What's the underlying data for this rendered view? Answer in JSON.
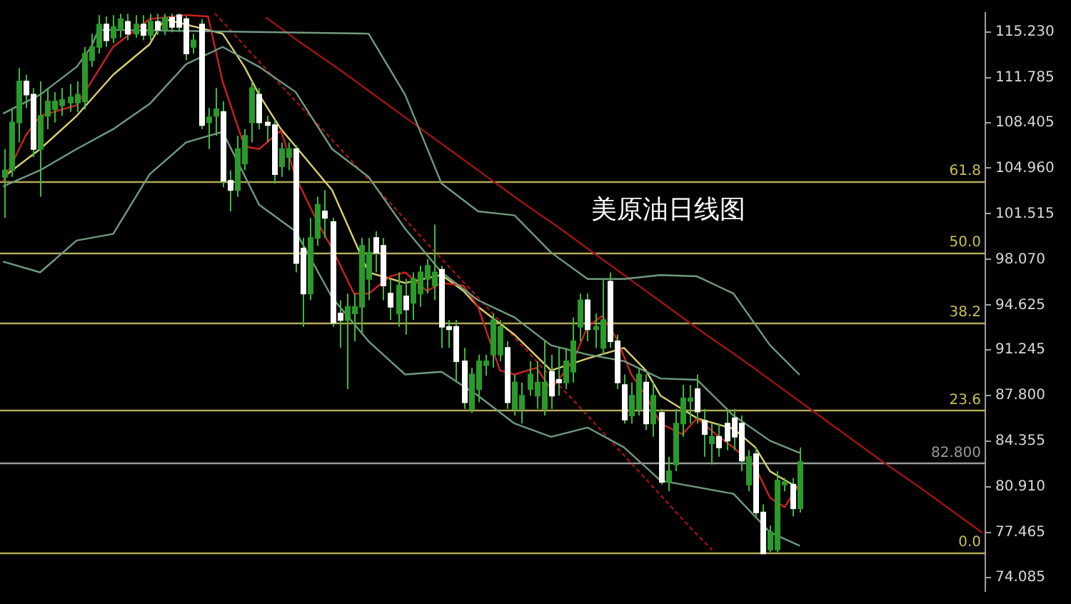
{
  "chart_data": {
    "type": "candlestick",
    "annotations": [
      "美原油日线图",
      {
        "text": "61.8",
        "y": 104.0
      },
      {
        "text": "50.0",
        "y": 98.6
      },
      {
        "text": "38.2",
        "y": 93.3
      },
      {
        "text": "23.6",
        "y": 86.7
      },
      {
        "text": "0.0",
        "y": 76.0
      }
    ],
    "categories": [
      null,
      null,
      null,
      null,
      null,
      null,
      null,
      null,
      null,
      null,
      null,
      null,
      null,
      null,
      null,
      null,
      null,
      null,
      null,
      null,
      null,
      null,
      null,
      null,
      null,
      null,
      null,
      null,
      null,
      null,
      null,
      null,
      null,
      null,
      null,
      null,
      null,
      null,
      null,
      null,
      null,
      null,
      null,
      null,
      null,
      null,
      null,
      null,
      null,
      null,
      null,
      null,
      null,
      null,
      null,
      null,
      null,
      null,
      null,
      null,
      null,
      null,
      null,
      null,
      null,
      null,
      null,
      null,
      null,
      null,
      null,
      null,
      null,
      null,
      null,
      null,
      null,
      null,
      null,
      null,
      null,
      null,
      null,
      null,
      null,
      null,
      null,
      null,
      null,
      null,
      null,
      null,
      null,
      null,
      null,
      null,
      null,
      null,
      null,
      null,
      null,
      null,
      null,
      null,
      null,
      null,
      null,
      null,
      null,
      null,
      null,
      null,
      null,
      null,
      null,
      null,
      null,
      null,
      null,
      null,
      null,
      null,
      null,
      null,
      null,
      null,
      null,
      null,
      null,
      null,
      null,
      null,
      null,
      null,
      null
    ],
    "ohlc": [
      [
        104.3,
        106.4,
        101.2,
        104.8
      ],
      [
        104.8,
        109.4,
        104.3,
        108.4
      ],
      [
        108.4,
        112.5,
        106.9,
        111.5
      ],
      [
        111.5,
        112.0,
        109.5,
        110.5
      ],
      [
        110.5,
        111.0,
        105.8,
        106.4
      ],
      [
        106.4,
        111.5,
        102.8,
        108.9
      ],
      [
        108.9,
        111.0,
        107.9,
        110.0
      ],
      [
        109.4,
        110.7,
        108.4,
        110.0
      ],
      [
        109.7,
        111.0,
        108.9,
        110.1
      ],
      [
        109.9,
        111.3,
        109.2,
        110.3
      ],
      [
        109.9,
        111.5,
        109.2,
        110.5
      ],
      [
        110.0,
        114.1,
        109.4,
        113.6
      ],
      [
        113.1,
        115.1,
        112.6,
        114.1
      ],
      [
        114.1,
        116.5,
        113.6,
        115.8
      ],
      [
        115.8,
        116.4,
        114.1,
        114.6
      ],
      [
        114.8,
        116.5,
        114.4,
        115.6
      ],
      [
        115.4,
        116.6,
        114.8,
        116.2
      ],
      [
        116.0,
        116.6,
        114.6,
        115.1
      ],
      [
        115.1,
        116.5,
        114.8,
        115.8
      ],
      [
        115.8,
        116.5,
        114.6,
        115.0
      ],
      [
        115.0,
        116.6,
        114.6,
        116.0
      ],
      [
        116.0,
        116.6,
        115.0,
        115.4
      ],
      [
        115.4,
        116.6,
        115.0,
        116.3
      ],
      [
        116.3,
        116.6,
        115.2,
        115.6
      ],
      [
        116.5,
        116.6,
        115.2,
        115.6
      ],
      [
        116.2,
        116.4,
        113.1,
        113.6
      ],
      [
        114.1,
        115.1,
        113.6,
        114.6
      ],
      [
        115.8,
        116.2,
        107.9,
        108.2
      ],
      [
        108.4,
        109.5,
        106.4,
        108.8
      ],
      [
        108.9,
        111.0,
        107.4,
        109.4
      ],
      [
        109.2,
        110.0,
        103.5,
        104.0
      ],
      [
        104.0,
        104.8,
        101.7,
        103.3
      ],
      [
        103.3,
        107.4,
        102.8,
        106.4
      ],
      [
        105.3,
        107.9,
        104.8,
        107.4
      ],
      [
        108.4,
        111.5,
        106.9,
        111.0
      ],
      [
        110.5,
        111.0,
        107.9,
        108.4
      ],
      [
        108.4,
        108.9,
        106.9,
        108.2
      ],
      [
        108.2,
        108.6,
        103.8,
        104.5
      ],
      [
        105.1,
        106.9,
        104.3,
        106.4
      ],
      [
        105.8,
        106.9,
        104.8,
        106.4
      ],
      [
        106.4,
        106.7,
        97.1,
        97.8
      ],
      [
        98.9,
        99.7,
        93.0,
        95.5
      ],
      [
        95.5,
        101.2,
        95.0,
        99.7
      ],
      [
        99.7,
        102.8,
        99.1,
        102.2
      ],
      [
        101.7,
        103.3,
        99.7,
        101.2
      ],
      [
        100.9,
        101.2,
        93.0,
        93.3
      ],
      [
        94.0,
        95.0,
        91.4,
        93.5
      ],
      [
        93.5,
        95.5,
        88.3,
        94.5
      ],
      [
        94.0,
        95.5,
        91.9,
        94.5
      ],
      [
        94.5,
        99.7,
        92.4,
        99.1
      ],
      [
        96.6,
        99.7,
        95.0,
        98.6
      ],
      [
        99.7,
        100.2,
        97.1,
        98.6
      ],
      [
        99.1,
        99.7,
        95.0,
        96.1
      ],
      [
        95.5,
        96.6,
        93.5,
        94.5
      ],
      [
        94.0,
        97.1,
        93.0,
        96.1
      ],
      [
        95.3,
        96.6,
        92.4,
        94.3
      ],
      [
        94.8,
        97.1,
        93.5,
        96.6
      ],
      [
        95.5,
        97.6,
        94.5,
        97.1
      ],
      [
        96.6,
        98.1,
        95.5,
        97.6
      ],
      [
        96.1,
        100.7,
        95.0,
        97.1
      ],
      [
        97.3,
        97.6,
        91.4,
        93.0
      ],
      [
        93.0,
        93.5,
        91.4,
        92.8
      ],
      [
        93.0,
        93.5,
        88.8,
        90.4
      ],
      [
        90.4,
        91.4,
        86.8,
        87.3
      ],
      [
        86.8,
        89.9,
        86.5,
        89.4
      ],
      [
        88.3,
        90.9,
        87.3,
        90.4
      ],
      [
        90.1,
        90.9,
        89.3,
        90.4
      ],
      [
        90.9,
        94.0,
        89.9,
        93.5
      ],
      [
        90.9,
        93.5,
        90.4,
        93.0
      ],
      [
        91.4,
        91.9,
        86.8,
        87.3
      ],
      [
        86.8,
        89.4,
        86.3,
        88.8
      ],
      [
        86.8,
        88.8,
        85.7,
        87.8
      ],
      [
        88.3,
        90.4,
        87.8,
        89.4
      ],
      [
        87.8,
        90.4,
        86.8,
        88.8
      ],
      [
        86.8,
        91.9,
        86.3,
        88.8
      ],
      [
        89.6,
        90.9,
        86.8,
        87.8
      ],
      [
        89.0,
        91.4,
        87.8,
        88.8
      ],
      [
        88.8,
        91.4,
        88.3,
        90.4
      ],
      [
        89.6,
        93.7,
        88.8,
        91.9
      ],
      [
        93.0,
        95.5,
        91.9,
        95.0
      ],
      [
        95.0,
        95.5,
        91.9,
        92.8
      ],
      [
        92.8,
        94.0,
        91.4,
        93.0
      ],
      [
        91.4,
        96.6,
        90.9,
        93.5
      ],
      [
        96.4,
        97.1,
        91.4,
        91.9
      ],
      [
        91.9,
        92.4,
        88.3,
        88.8
      ],
      [
        88.6,
        89.4,
        85.7,
        86.0
      ],
      [
        86.3,
        88.8,
        85.7,
        87.8
      ],
      [
        86.8,
        89.9,
        86.3,
        89.4
      ],
      [
        88.8,
        89.4,
        85.2,
        85.7
      ],
      [
        85.7,
        88.8,
        84.7,
        87.8
      ],
      [
        86.5,
        86.8,
        81.1,
        81.3
      ],
      [
        81.3,
        83.2,
        80.6,
        82.1
      ],
      [
        82.6,
        86.8,
        82.1,
        85.7
      ],
      [
        85.7,
        88.6,
        84.7,
        87.6
      ],
      [
        87.4,
        88.6,
        85.7,
        87.6
      ],
      [
        88.3,
        89.4,
        85.7,
        86.6
      ],
      [
        85.9,
        86.8,
        83.2,
        84.9
      ],
      [
        84.2,
        85.7,
        82.6,
        84.7
      ],
      [
        84.7,
        85.7,
        83.2,
        83.9
      ],
      [
        85.7,
        86.8,
        83.7,
        84.4
      ],
      [
        86.1,
        86.8,
        83.7,
        84.7
      ],
      [
        85.7,
        86.3,
        82.1,
        82.9
      ],
      [
        81.1,
        83.7,
        80.6,
        83.2
      ],
      [
        83.4,
        83.9,
        78.7,
        79.0
      ],
      [
        79.0,
        79.6,
        75.9,
        75.9
      ],
      [
        76.2,
        78.0,
        76.0,
        77.5
      ],
      [
        76.2,
        82.1,
        76.0,
        81.4
      ],
      [
        81.1,
        81.6,
        80.6,
        81.3
      ],
      [
        81.1,
        81.6,
        78.7,
        79.3
      ],
      [
        79.3,
        83.9,
        79.0,
        82.8
      ],
      null,
      null,
      null,
      null,
      null,
      null,
      null,
      null,
      null,
      null,
      null,
      null,
      null,
      null,
      null,
      null,
      null,
      null,
      null,
      null,
      null,
      null,
      null,
      null,
      null
    ],
    "color": "#3cb83c",
    "colors": [
      "#2a9a2a",
      "#2a9a2a",
      "#2a9a2a",
      "#ffffff",
      "#ffffff",
      "#2a9a2a",
      "#2a9a2a",
      "#2a9a2a",
      "#2a9a2a",
      "#2a9a2a",
      "#2a9a2a",
      "#2a9a2a",
      "#2a9a2a",
      "#2a9a2a",
      "#ffffff",
      "#2a9a2a",
      "#2a9a2a",
      "#ffffff",
      "#2a9a2a",
      "#ffffff",
      "#2a9a2a",
      "#ffffff",
      "#2a9a2a",
      "#ffffff",
      "#ffffff",
      "#ffffff",
      "#2a9a2a",
      "#ffffff",
      "#2a9a2a",
      "#2a9a2a",
      "#ffffff",
      "#ffffff",
      "#2a9a2a",
      "#2a9a2a",
      "#2a9a2a",
      "#ffffff",
      "#ffffff",
      "#ffffff",
      "#2a9a2a",
      "#2a9a2a",
      "#ffffff",
      "#ffffff",
      "#2a9a2a",
      "#2a9a2a",
      "#ffffff",
      "#ffffff",
      "#ffffff",
      "#2a9a2a",
      "#2a9a2a",
      "#2a9a2a",
      "#2a9a2a",
      "#ffffff",
      "#ffffff",
      "#ffffff",
      "#2a9a2a",
      "#ffffff",
      "#2a9a2a",
      "#2a9a2a",
      "#2a9a2a",
      "#2a9a2a",
      "#ffffff",
      "#ffffff",
      "#ffffff",
      "#ffffff",
      "#2a9a2a",
      "#2a9a2a",
      "#2a9a2a",
      "#2a9a2a",
      "#2a9a2a",
      "#ffffff",
      "#2a9a2a",
      "#2a9a2a",
      "#2a9a2a",
      "#2a9a2a",
      "#2a9a2a",
      "#ffffff",
      "#ffffff",
      "#2a9a2a",
      "#2a9a2a",
      "#2a9a2a",
      "#ffffff",
      "#2a9a2a",
      "#2a9a2a",
      "#ffffff",
      "#ffffff",
      "#ffffff",
      "#2a9a2a",
      "#2a9a2a",
      "#ffffff",
      "#2a9a2a",
      "#ffffff",
      "#2a9a2a",
      "#2a9a2a",
      "#2a9a2a",
      "#2a9a2a",
      "#ffffff",
      "#ffffff",
      "#2a9a2a",
      "#ffffff",
      "#ffffff",
      "#ffffff",
      "#ffffff",
      "#2a9a2a",
      "#ffffff",
      "#ffffff",
      "#2a9a2a",
      "#2a9a2a",
      "#2a9a2a",
      "#ffffff",
      "#2a9a2a",
      null,
      null,
      null,
      null,
      null,
      null,
      null,
      null,
      null,
      null,
      null,
      null,
      null,
      null,
      null,
      null,
      null,
      null,
      null,
      null,
      null,
      null,
      null,
      null,
      null
    ],
    "series": [
      {
        "type": "line",
        "color": "#6f9a80",
        "values": [
          109.1,
          null,
          null,
          null,
          null,
          110.5,
          null,
          null,
          null,
          null,
          112.6,
          null,
          114.1,
          115.4,
          null,
          null,
          null,
          null,
          null,
          null,
          null,
          null,
          null,
          null,
          null,
          null,
          null,
          null,
          null,
          null,
          null,
          null,
          null,
          null,
          null,
          null,
          null,
          null,
          null,
          null,
          null,
          null,
          null,
          null,
          null,
          null,
          null,
          null,
          null,
          null,
          115.1,
          null,
          null,
          null,
          null,
          110.5,
          null,
          null,
          null,
          null,
          103.8,
          null,
          null,
          null,
          null,
          101.7,
          null,
          null,
          null,
          null,
          101.4,
          null,
          null,
          null,
          null,
          98.6,
          null,
          null,
          null,
          null,
          96.6,
          null,
          null,
          null,
          null,
          96.6,
          null,
          null,
          null,
          null,
          96.9,
          null,
          null,
          null,
          null,
          96.8,
          null,
          null,
          null,
          null,
          95.5,
          null,
          null,
          null,
          null,
          91.6,
          null,
          null,
          null,
          89.4,
          null,
          null,
          null,
          null,
          null,
          null,
          null,
          null,
          null,
          null,
          null,
          null,
          null,
          null,
          null,
          null,
          null,
          null,
          null,
          null,
          null,
          null,
          null,
          null,
          null
        ]
      },
      {
        "type": "line",
        "color": "#6f9a80",
        "values": [
          103.6,
          null,
          null,
          null,
          null,
          104.8,
          null,
          null,
          null,
          null,
          106.4,
          null,
          null,
          null,
          null,
          107.9,
          null,
          null,
          null,
          null,
          109.8,
          null,
          null,
          null,
          null,
          112.8,
          null,
          null,
          null,
          null,
          114.1,
          null,
          null,
          null,
          null,
          112.6,
          null,
          null,
          null,
          null,
          110.7,
          null,
          null,
          null,
          null,
          106.4,
          null,
          null,
          null,
          null,
          104.3,
          null,
          null,
          null,
          null,
          100.4,
          null,
          null,
          null,
          null,
          97.1,
          null,
          null,
          null,
          null,
          95.0,
          null,
          null,
          null,
          null,
          93.7,
          null,
          null,
          null,
          null,
          91.6,
          null,
          null,
          null,
          null,
          90.9,
          null,
          null,
          null,
          null,
          90.4,
          null,
          null,
          null,
          null,
          89.1,
          null,
          null,
          null,
          null,
          89.0,
          null,
          null,
          null,
          null,
          86.3,
          null,
          null,
          null,
          null,
          84.4,
          null,
          null,
          null,
          83.5,
          null,
          null,
          null,
          null,
          null,
          null,
          null,
          null,
          null,
          null,
          null,
          null,
          null,
          null,
          null,
          null,
          null,
          null,
          null,
          null,
          null,
          null,
          null,
          null,
          null
        ]
      },
      {
        "type": "line",
        "color": "#6f9a80",
        "values": [
          97.9,
          null,
          null,
          null,
          null,
          97.1,
          null,
          null,
          null,
          null,
          99.5,
          null,
          null,
          null,
          null,
          100.0,
          null,
          null,
          null,
          null,
          104.5,
          null,
          null,
          null,
          null,
          106.9,
          null,
          null,
          null,
          null,
          107.7,
          null,
          null,
          null,
          null,
          102.2,
          null,
          null,
          null,
          null,
          100.2,
          null,
          null,
          null,
          null,
          95.2,
          null,
          null,
          null,
          null,
          91.9,
          null,
          null,
          null,
          null,
          89.4,
          null,
          null,
          null,
          null,
          89.6,
          null,
          null,
          null,
          null,
          87.8,
          null,
          null,
          null,
          null,
          85.7,
          null,
          null,
          null,
          null,
          84.7,
          null,
          null,
          null,
          null,
          85.4,
          null,
          null,
          null,
          null,
          83.9,
          null,
          null,
          null,
          null,
          81.4,
          null,
          null,
          null,
          null,
          80.9,
          null,
          null,
          null,
          null,
          80.4,
          null,
          null,
          null,
          null,
          77.5,
          null,
          null,
          null,
          76.5,
          null,
          null,
          null,
          null,
          null,
          null,
          null,
          null,
          null,
          null,
          null,
          null,
          null,
          null,
          null,
          null,
          null,
          null,
          null,
          null,
          null,
          null,
          null,
          null,
          null
        ]
      },
      {
        "type": "line",
        "color": "#d02020",
        "values": [
          104.0,
          null,
          null,
          107.4,
          null,
          108.9,
          null,
          null,
          null,
          null,
          109.7,
          null,
          null,
          null,
          null,
          114.1,
          null,
          null,
          null,
          null,
          116.2,
          null,
          null,
          null,
          null,
          116.5,
          null,
          null,
          116.4,
          null,
          111.5,
          null,
          null,
          106.6,
          null,
          106.4,
          null,
          null,
          107.8,
          null,
          104.3,
          null,
          null,
          100.9,
          null,
          98.9,
          null,
          null,
          95.5,
          null,
          95.5,
          null,
          null,
          96.8,
          null,
          97.1,
          null,
          null,
          95.7,
          null,
          96.3,
          null,
          null,
          96.1,
          null,
          94.5,
          null,
          null,
          89.7,
          null,
          89.4,
          null,
          null,
          89.9,
          null,
          88.3,
          null,
          null,
          90.4,
          null,
          93.0,
          null,
          93.8,
          null,
          92.1,
          null,
          89.4,
          null,
          87.8,
          null,
          85.7,
          null,
          null,
          84.9,
          null,
          86.1,
          null,
          null,
          84.7,
          null,
          83.9,
          null,
          null,
          82.4,
          null,
          80.1,
          null,
          79.4,
          null,
          81.1,
          null,
          null,
          null,
          null,
          null,
          null,
          null,
          null,
          null,
          null,
          null,
          null,
          null,
          null,
          null,
          null,
          null,
          null,
          null,
          null,
          null,
          null,
          null,
          null,
          null
        ]
      },
      {
        "type": "line",
        "color": "#d8d070",
        "values": [
          104.3,
          null,
          null,
          null,
          null,
          106.4,
          null,
          null,
          null,
          null,
          108.9,
          null,
          null,
          null,
          null,
          112.0,
          null,
          null,
          null,
          null,
          114.3,
          null,
          116.2,
          null,
          null,
          null,
          null,
          null,
          null,
          null,
          115.1,
          null,
          null,
          112.6,
          null,
          110.5,
          null,
          null,
          107.9,
          null,
          106.6,
          null,
          null,
          null,
          null,
          103.3,
          null,
          null,
          null,
          null,
          97.1,
          null,
          null,
          null,
          null,
          96.3,
          null,
          null,
          null,
          null,
          96.9,
          null,
          null,
          95.7,
          null,
          94.5,
          null,
          null,
          null,
          null,
          92.4,
          null,
          null,
          null,
          null,
          89.7,
          null,
          null,
          null,
          null,
          90.6,
          null,
          null,
          null,
          null,
          91.4,
          null,
          null,
          89.7,
          null,
          87.8,
          null,
          null,
          null,
          null,
          86.1,
          null,
          null,
          null,
          null,
          85.3,
          null,
          null,
          83.9,
          null,
          82.1,
          null,
          null,
          null,
          80.8,
          null,
          null,
          null,
          null,
          null,
          null,
          null,
          null,
          null,
          null,
          null,
          null,
          null,
          null,
          null,
          null,
          null,
          null,
          null,
          null,
          null,
          null,
          null,
          null,
          null
        ]
      },
      {
        "type": "line",
        "color": "#a01414",
        "values": [
          null,
          null,
          null,
          null,
          null,
          null,
          null,
          null,
          null,
          null,
          null,
          null,
          null,
          null,
          null,
          null,
          null,
          null,
          null,
          null,
          null,
          null,
          null,
          null,
          null,
          null,
          null,
          null,
          null,
          null,
          null,
          null,
          null,
          null,
          null,
          null,
          116.3,
          null,
          null,
          null,
          null,
          114.3,
          null,
          null,
          null,
          null,
          112.4,
          null,
          null,
          null,
          null,
          110.4,
          null,
          null,
          null,
          null,
          108.4,
          null,
          null,
          null,
          null,
          106.4,
          null,
          null,
          null,
          null,
          104.4,
          null,
          null,
          null,
          null,
          102.4,
          null,
          null,
          null,
          null,
          100.5,
          null,
          null,
          null,
          null,
          98.5,
          null,
          null,
          null,
          null,
          96.5,
          null,
          null,
          null,
          null,
          94.5,
          null,
          null,
          null,
          null,
          92.5,
          null,
          null,
          null,
          null,
          90.6,
          null,
          null,
          null,
          null,
          88.6,
          null,
          null,
          null,
          null,
          86.6,
          null,
          null,
          null,
          null,
          84.6,
          null,
          null,
          null,
          null,
          82.6,
          null,
          null,
          null,
          null,
          80.7,
          null,
          null,
          null,
          null,
          78.7,
          null,
          null,
          77.5
        ]
      },
      {
        "type": "line",
        "color": "#a01414",
        "line_style": "dotted",
        "values": [
          null,
          null,
          null,
          null,
          null,
          null,
          null,
          null,
          null,
          null,
          null,
          null,
          null,
          null,
          null,
          null,
          null,
          null,
          null,
          null,
          null,
          null,
          null,
          null,
          null,
          null,
          null,
          null,
          null,
          116.6,
          null,
          null,
          null,
          null,
          113.6,
          null,
          null,
          null,
          null,
          110.6,
          null,
          null,
          null,
          null,
          107.7,
          null,
          null,
          null,
          null,
          104.7,
          null,
          null,
          null,
          null,
          101.7,
          null,
          null,
          null,
          null,
          98.7,
          null,
          null,
          null,
          null,
          95.8,
          null,
          null,
          null,
          null,
          92.8,
          null,
          null,
          null,
          null,
          89.8,
          null,
          null,
          null,
          null,
          86.9,
          null,
          null,
          null,
          null,
          83.9,
          null,
          null,
          null,
          null,
          80.9,
          null,
          null,
          null,
          null,
          77.9,
          null,
          null,
          76.2,
          null,
          null,
          null,
          null,
          null,
          null,
          null,
          null,
          null,
          null,
          null,
          null,
          null,
          null,
          null,
          null,
          null,
          null,
          null,
          null,
          null,
          null,
          null,
          null,
          null,
          null,
          null,
          null,
          null,
          null,
          null,
          null,
          null,
          null,
          null,
          null,
          null
        ]
      }
    ],
    "ref_lines": [
      {
        "axis": "y",
        "value": 104.0,
        "color": "#b0a858"
      },
      {
        "axis": "y",
        "value": 98.6,
        "color": "#b0a858"
      },
      {
        "axis": "y",
        "value": 93.3,
        "color": "#b0a858"
      },
      {
        "axis": "y",
        "value": 86.7,
        "color": "#b0a858"
      },
      {
        "axis": "y",
        "value": 76.0,
        "color": "#b0a858"
      },
      {
        "axis": "y",
        "value": 82.8,
        "label": "82.800",
        "color": "#9a9a9a"
      }
    ],
    "ylim": [
      73.06,
      116.67
    ],
    "yticks": [
      {
        "value": 74.085,
        "label": "74.085"
      },
      {
        "value": 77.465,
        "label": "77.465"
      },
      {
        "value": 80.91,
        "label": "80.910"
      },
      {
        "value": 84.355,
        "label": "84.355"
      },
      {
        "value": 87.8,
        "label": "87.800"
      },
      {
        "value": 91.245,
        "label": "91.245"
      },
      {
        "value": 94.625,
        "label": "94.625"
      },
      {
        "value": 98.07,
        "label": "98.070"
      },
      {
        "value": 101.515,
        "label": "101.515"
      },
      {
        "value": 104.96,
        "label": "104.960"
      },
      {
        "value": 108.405,
        "label": "108.405"
      },
      {
        "value": 111.785,
        "label": "111.785"
      },
      {
        "value": 115.23,
        "label": "115.230"
      }
    ],
    "tick_labels": "y",
    "grid": false,
    "legend": false,
    "marker": "none"
  }
}
